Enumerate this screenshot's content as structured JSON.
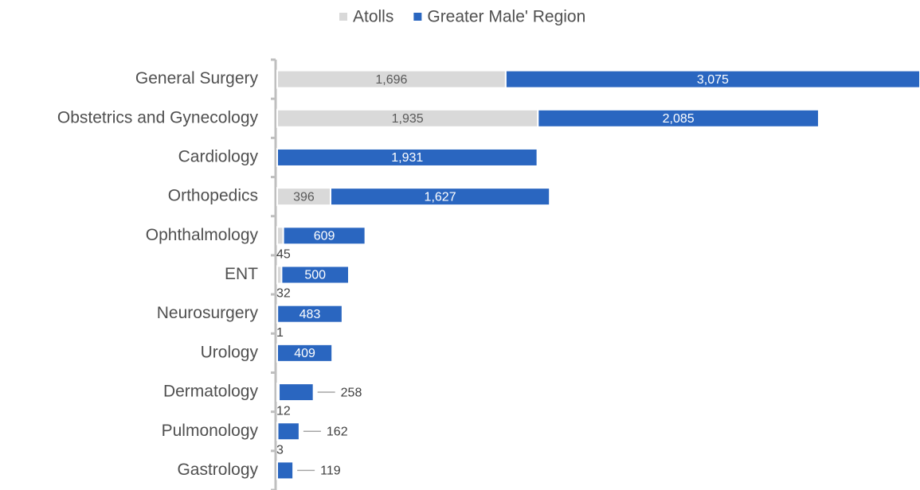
{
  "chart_data": {
    "type": "stacked-bar-horizontal",
    "categories": [
      "General Surgery",
      "Obstetrics and Gynecology",
      "Cardiology",
      "Orthopedics",
      "Ophthalmology",
      "ENT",
      "Neurosurgery",
      "Urology",
      "Dermatology",
      "Pulmonology",
      "Gastrology"
    ],
    "series": [
      {
        "name": "Atolls",
        "color": "#d9d9d9",
        "values": [
          1696,
          1935,
          null,
          396,
          45,
          32,
          1,
          null,
          12,
          3,
          null
        ],
        "value_labels": [
          "1,696",
          "1,935",
          null,
          "396",
          "45",
          "32",
          "1",
          null,
          "12",
          "3",
          null
        ]
      },
      {
        "name": "Greater Male' Region",
        "color": "#2a66c0",
        "values": [
          3075,
          2085,
          1931,
          1627,
          609,
          500,
          483,
          409,
          258,
          162,
          119
        ],
        "value_labels": [
          "3,075",
          "2,085",
          "1,931",
          "1,627",
          "609",
          "500",
          "483",
          "409",
          "258",
          "162",
          "119"
        ]
      }
    ],
    "legend": "top"
  }
}
